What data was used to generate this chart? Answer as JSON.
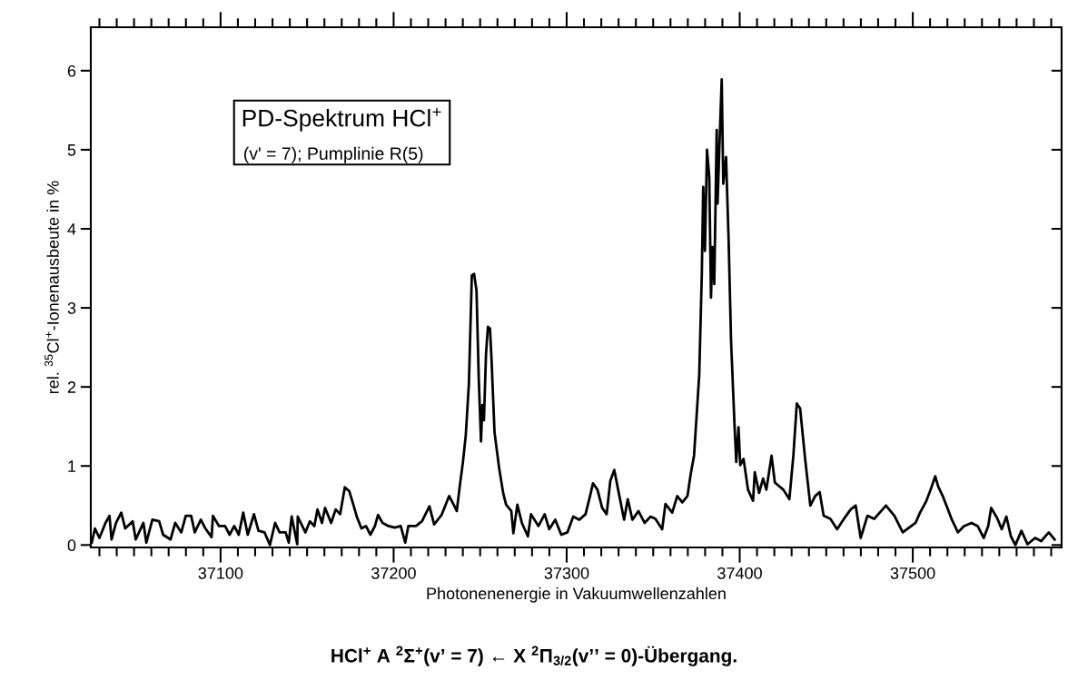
{
  "chart_data": {
    "type": "line",
    "xlabel": "Photonenenergie in Vakuumwellenzahlen",
    "ylabel": "rel. $^{35}$Cl$^{+}$-Ionenausbeute in %",
    "annotations": [
      "PD-Spektrum HCl$^{+}$",
      "(v' = 7); Pumplinie R(5)",
      "HCl$^{+}$ A $^{2}$Σ$^{+}$(v’ = 7) ← X $^{2}$Π$_{3/2}$(v’’ = 0)-Übergang."
    ],
    "xlim": [
      37025,
      37586
    ],
    "ylim": [
      -0.03,
      6.55
    ],
    "xticks": [
      {
        "value": 37030,
        "label": null
      },
      {
        "value": 37040,
        "label": null
      },
      {
        "value": 37050,
        "label": null
      },
      {
        "value": 37060,
        "label": null
      },
      {
        "value": 37070,
        "label": null
      },
      {
        "value": 37080,
        "label": null
      },
      {
        "value": 37090,
        "label": null
      },
      37100,
      {
        "value": 37110,
        "label": null
      },
      {
        "value": 37120,
        "label": null
      },
      {
        "value": 37130,
        "label": null
      },
      {
        "value": 37140,
        "label": null
      },
      {
        "value": 37150,
        "label": null
      },
      {
        "value": 37160,
        "label": null
      },
      {
        "value": 37170,
        "label": null
      },
      {
        "value": 37180,
        "label": null
      },
      {
        "value": 37190,
        "label": null
      },
      37200,
      {
        "value": 37210,
        "label": null
      },
      {
        "value": 37220,
        "label": null
      },
      {
        "value": 37230,
        "label": null
      },
      {
        "value": 37240,
        "label": null
      },
      {
        "value": 37250,
        "label": null
      },
      {
        "value": 37260,
        "label": null
      },
      {
        "value": 37270,
        "label": null
      },
      {
        "value": 37280,
        "label": null
      },
      {
        "value": 37290,
        "label": null
      },
      37300,
      {
        "value": 37310,
        "label": null
      },
      {
        "value": 37320,
        "label": null
      },
      {
        "value": 37330,
        "label": null
      },
      {
        "value": 37340,
        "label": null
      },
      {
        "value": 37350,
        "label": null
      },
      {
        "value": 37360,
        "label": null
      },
      {
        "value": 37370,
        "label": null
      },
      {
        "value": 37380,
        "label": null
      },
      {
        "value": 37390,
        "label": null
      },
      37400,
      {
        "value": 37410,
        "label": null
      },
      {
        "value": 37420,
        "label": null
      },
      {
        "value": 37430,
        "label": null
      },
      {
        "value": 37440,
        "label": null
      },
      {
        "value": 37450,
        "label": null
      },
      {
        "value": 37460,
        "label": null
      },
      {
        "value": 37470,
        "label": null
      },
      {
        "value": 37480,
        "label": null
      },
      {
        "value": 37490,
        "label": null
      },
      37500,
      {
        "value": 37510,
        "label": null
      },
      {
        "value": 37520,
        "label": null
      },
      {
        "value": 37530,
        "label": null
      },
      {
        "value": 37540,
        "label": null
      },
      {
        "value": 37550,
        "label": null
      },
      {
        "value": 37560,
        "label": null
      },
      {
        "value": 37570,
        "label": null
      },
      {
        "value": 37580,
        "label": null
      }
    ],
    "yticks": [
      0,
      1,
      2,
      3,
      4,
      5,
      6
    ],
    "grid": false,
    "marker": "none",
    "line_style": "solid",
    "series": [
      {
        "color": "#000000",
        "x": [
          37025.6,
          37027.4,
          37030,
          37033.5,
          37035.8,
          37037,
          37039.6,
          37042.6,
          37044.9,
          37049.2,
          37051,
          37055.4,
          37057.1,
          37060.6,
          37064.5,
          37066.8,
          37071.1,
          37073.8,
          37077.3,
          37079.9,
          37083,
          37085.1,
          37088.6,
          37091.2,
          37094.8,
          37095.6,
          37099.1,
          37102.6,
          37105.2,
          37107.9,
          37110.5,
          37113.1,
          37115.7,
          37119.3,
          37121.9,
          37125.4,
          37128.5,
          37131.5,
          37134.1,
          37137.6,
          37139.4,
          37141.1,
          37144.3,
          37144.6,
          37149,
          37151.6,
          37154.2,
          37156,
          37158.6,
          37160.4,
          37163.9,
          37166.5,
          37169.1,
          37171.8,
          37174.4,
          37177,
          37178.7,
          37181.4,
          37184,
          37186.6,
          37189.2,
          37191,
          37193.6,
          37197.1,
          37200.6,
          37204.1,
          37206.7,
          37208.5,
          37212.9,
          37216.4,
          37220.7,
          37223.4,
          37227.7,
          37232.1,
          37234.7,
          37236.5,
          37238.2,
          37240,
          37241.7,
          37243.5,
          37245.2,
          37246.5,
          37247.9,
          37249.2,
          37250.5,
          37251.3,
          37252.2,
          37253.4,
          37254.5,
          37255.7,
          37256.6,
          37258.3,
          37261,
          37263.3,
          37265,
          37268,
          37269.2,
          37271.5,
          37274.1,
          37277.6,
          37279.4,
          37283.7,
          37287.3,
          37289.9,
          37293.4,
          37296.9,
          37300.4,
          37303.8,
          37307.3,
          37310.9,
          37313.5,
          37315.2,
          37317.8,
          37320.5,
          37323.1,
          37325.2,
          37327.5,
          37330.1,
          37333.2,
          37335.3,
          37338,
          37341.5,
          37345,
          37348.5,
          37351.3,
          37355.2,
          37357.1,
          37361,
          37363.9,
          37366.8,
          37369.8,
          37371.7,
          37373.6,
          37376.6,
          37378.1,
          37378.9,
          37379.9,
          37381.1,
          37382.4,
          37383.4,
          37384.3,
          37385.3,
          37386.7,
          37387.2,
          37388.2,
          37389.6,
          37390.5,
          37392.1,
          37393.6,
          37395,
          37397,
          37398,
          37399.3,
          37400.3,
          37402.2,
          37404.8,
          37407.7,
          37408.7,
          37411.2,
          37413.5,
          37415.4,
          37418.4,
          37420.3,
          37425.2,
          37428.7,
          37431,
          37433,
          37434.9,
          37437.8,
          37440.8,
          37443.6,
          37446.2,
          37448.5,
          37452.4,
          37456.3,
          37460.2,
          37464.1,
          37467,
          37469.9,
          37473.8,
          37477.7,
          37484.5,
          37489.4,
          37494.2,
          37501.6,
          37504.2,
          37507.7,
          37510.3,
          37513,
          37514.7,
          37517.3,
          37520,
          37522.6,
          37526.1,
          37529.6,
          37534,
          37537.5,
          37541,
          37543.6,
          37545.3,
          37548.8,
          37551.4,
          37554.1,
          37556.7,
          37559.3,
          37562.8,
          37566.3,
          37570.7,
          37574.2,
          37578.6,
          37582
        ],
        "values": [
          0.03,
          0.21,
          0.09,
          0.28,
          0.37,
          0.07,
          0.28,
          0.41,
          0.21,
          0.3,
          0.07,
          0.28,
          0.03,
          0.32,
          0.3,
          0.13,
          0.07,
          0.28,
          0.16,
          0.37,
          0.37,
          0.16,
          0.32,
          0.21,
          0.1,
          0.37,
          0.24,
          0.24,
          0.13,
          0.24,
          0.13,
          0.41,
          0.13,
          0.39,
          0.18,
          0.16,
          0.0,
          0.28,
          0.16,
          0.16,
          0.03,
          0.36,
          0.01,
          0.36,
          0.16,
          0.3,
          0.24,
          0.45,
          0.28,
          0.47,
          0.28,
          0.45,
          0.39,
          0.73,
          0.68,
          0.49,
          0.36,
          0.21,
          0.24,
          0.13,
          0.24,
          0.38,
          0.28,
          0.24,
          0.22,
          0.24,
          0.03,
          0.24,
          0.24,
          0.3,
          0.49,
          0.26,
          0.38,
          0.62,
          0.51,
          0.43,
          0.74,
          1.04,
          1.39,
          2.04,
          3.41,
          3.43,
          3.22,
          2.11,
          1.31,
          1.77,
          1.58,
          2.42,
          2.76,
          2.74,
          2.34,
          1.43,
          0.97,
          0.66,
          0.51,
          0.43,
          0.15,
          0.51,
          0.28,
          0.11,
          0.39,
          0.24,
          0.39,
          0.2,
          0.32,
          0.13,
          0.16,
          0.36,
          0.32,
          0.39,
          0.62,
          0.78,
          0.7,
          0.47,
          0.39,
          0.81,
          0.95,
          0.66,
          0.32,
          0.58,
          0.32,
          0.43,
          0.28,
          0.36,
          0.33,
          0.2,
          0.52,
          0.41,
          0.62,
          0.54,
          0.62,
          0.9,
          1.13,
          2.15,
          3.43,
          4.53,
          3.72,
          5.0,
          4.66,
          3.13,
          3.77,
          3.3,
          5.25,
          4.32,
          5.0,
          5.89,
          4.57,
          4.91,
          3.85,
          2.58,
          1.52,
          1.05,
          1.49,
          1.01,
          1.09,
          0.7,
          0.56,
          0.92,
          0.66,
          0.84,
          0.7,
          1.13,
          0.79,
          0.7,
          0.58,
          1.13,
          1.79,
          1.73,
          1.09,
          0.5,
          0.62,
          0.67,
          0.37,
          0.33,
          0.2,
          0.33,
          0.45,
          0.5,
          0.09,
          0.37,
          0.33,
          0.5,
          0.37,
          0.16,
          0.28,
          0.41,
          0.55,
          0.7,
          0.87,
          0.74,
          0.62,
          0.47,
          0.32,
          0.16,
          0.24,
          0.28,
          0.24,
          0.09,
          0.24,
          0.47,
          0.34,
          0.2,
          0.36,
          0.11,
          0.0,
          0.18,
          0.01,
          0.09,
          0.05,
          0.16,
          0.07
        ]
      }
    ]
  }
}
